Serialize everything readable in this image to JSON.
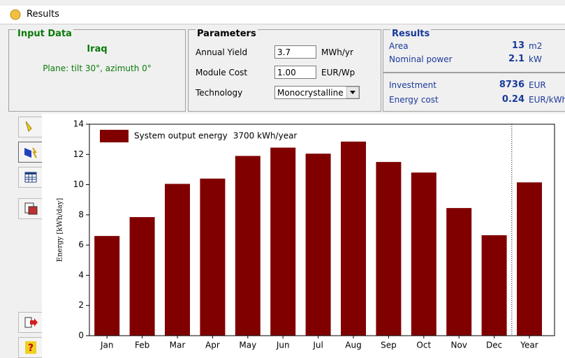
{
  "window": {
    "title": "Results"
  },
  "input_data": {
    "heading": "Input Data",
    "location": "Iraq",
    "plane": "Plane: tilt 30°, azimuth 0°"
  },
  "parameters": {
    "heading": "Parameters",
    "rows": [
      {
        "label": "Annual Yield",
        "value": "3.7",
        "unit": "MWh/yr"
      },
      {
        "label": "Module Cost",
        "value": "1.00",
        "unit": "EUR/Wp"
      },
      {
        "label": "Technology",
        "value": "Monocrystalline"
      }
    ]
  },
  "results": {
    "heading": "Results",
    "top": [
      {
        "label": "Area",
        "value": 13,
        "unit": "m2"
      },
      {
        "label": "Nominal power",
        "value": 2.1,
        "unit": "kW"
      }
    ],
    "bottom": [
      {
        "label": "Investment",
        "value": 8736,
        "unit": "EUR"
      },
      {
        "label": "Energy cost",
        "value": 0.24,
        "unit": "EUR/kWh"
      }
    ]
  },
  "chart_data": {
    "type": "bar",
    "y_label": "Energy [kWh/day]",
    "categories": [
      "Jan",
      "Feb",
      "Mar",
      "Apr",
      "May",
      "Jun",
      "Jul",
      "Aug",
      "Sep",
      "Oct",
      "Nov",
      "Dec",
      "Year"
    ],
    "series": [
      {
        "name": "System output energy",
        "color": "#800000",
        "values": [
          6.6,
          7.85,
          10.05,
          10.4,
          11.9,
          12.45,
          12.05,
          12.85,
          11.5,
          10.8,
          8.45,
          6.65,
          10.15
        ]
      }
    ],
    "legend_note": "3700 kWh/year",
    "ylim": [
      0,
      14
    ],
    "yticks": [
      0,
      2,
      4,
      6,
      8,
      10,
      12,
      14
    ],
    "legend": "upper left"
  }
}
